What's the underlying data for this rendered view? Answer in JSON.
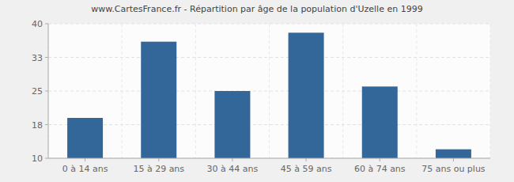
{
  "chart_data": {
    "type": "bar",
    "title": "www.CartesFrance.fr - Répartition par âge de la population d'Uzelle en 1999",
    "categories": [
      "0 à 14 ans",
      "15 à 29 ans",
      "30 à 44 ans",
      "45 à 59 ans",
      "60 à 74 ans",
      "75 ans ou plus"
    ],
    "values": [
      19,
      36,
      25,
      38,
      26,
      12
    ],
    "color": "#336699",
    "ylim": [
      10,
      40
    ],
    "yticks": [
      10,
      {
        "value": 17.5,
        "label": "18"
      },
      25,
      {
        "value": 32.5,
        "label": "33"
      },
      40
    ],
    "grid": true
  }
}
